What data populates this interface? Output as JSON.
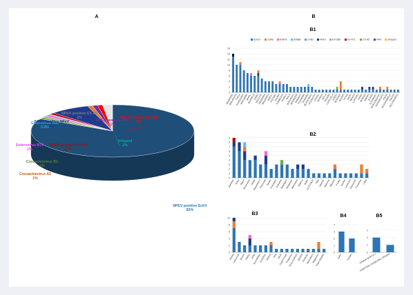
{
  "colors": {
    "background": "#eef0f6",
    "panel": "#ffffff",
    "echovirus": "#2e75b6",
    "cva6": "#ed7d31",
    "ev_d68": "#a5a5a5",
    "ev_a71": "#c00000",
    "cvb2": "#5b9bd5",
    "cva5": "#70ad47",
    "ev_b75": "#ff66cc",
    "ev_b80": "#4fc3f7",
    "hpev": "#1f3b8c",
    "untyped": "#000000"
  },
  "chart_data": [
    {
      "id": "A",
      "type": "pie",
      "panel_label": "A",
      "slices": [
        {
          "name": "NPEV positive EchV",
          "percent": "83%",
          "value": 83,
          "color": "#1f4e79",
          "label_color": "#2e75b6"
        },
        {
          "name": "Coxsackievirus A5",
          "percent": "1%",
          "value": 1,
          "color": "#70ad47",
          "label_color": "#c55a11"
        },
        {
          "name": "Coxsackievirus B2",
          "percent": "1%",
          "value": 1,
          "color": "#a9a9a9",
          "label_color": "#548235"
        },
        {
          "name": "Enterovirus B75",
          "percent": "1%",
          "value": 1,
          "color": "#ff66cc",
          "label_color": "#e040fb"
        },
        {
          "name": "Enterovirus B80",
          "percent": "0.4%",
          "value": 0.4,
          "color": "#4fc3f7",
          "label_color": "#29a9e0"
        },
        {
          "name": "NPEV positive EV-A71",
          "percent": "1%",
          "value": 1,
          "color": "#c00000",
          "label_color": "#c00000"
        },
        {
          "name": "NPEV positive HPeV",
          "percent": "8%",
          "value": 8,
          "color": "#1f3b8c",
          "label_color": "#1f3b8c"
        },
        {
          "name": "NPEV positive CV-A6",
          "percent": "1%",
          "value": 1,
          "color": "#ed7d31",
          "label_color": "#7f7f7f"
        },
        {
          "name": "NPEV positive HRV",
          "percent": "1%",
          "value": 1,
          "color": "#7030a0",
          "label_color": "#7030a0"
        },
        {
          "name": "NPEV positive EV-D68",
          "percent": "1%",
          "value": 1,
          "color": "#ff0000",
          "label_color": "#ff0000"
        },
        {
          "name": "Untyped",
          "percent": "2%",
          "value": 2,
          "color": "#e7e6e6",
          "label_color": "#00b0a0"
        }
      ]
    },
    {
      "id": "B1",
      "type": "bar",
      "stacked": true,
      "panel_label": "B1",
      "ylim": [
        0,
        16
      ],
      "yticks": [
        0,
        2,
        4,
        6,
        8,
        10,
        12,
        14,
        16
      ],
      "legend": [
        "EchoV",
        "CVA6",
        "EVB75",
        "EVB80",
        "CVB2",
        "HPeV",
        "EV-D68",
        "EV-A71",
        "CV-A5",
        "HRV",
        "Untyped"
      ],
      "legend_colors": [
        "#2e75b6",
        "#ed7d31",
        "#ff66cc",
        "#4fc3f7",
        "#5b9bd5",
        "#1f3b8c",
        "#a5a5a5",
        "#c00000",
        "#70ad47",
        "#7030a0",
        "#ffc000"
      ],
      "categories": [
        "MARRERE",
        "BUKAKASA",
        "TUKAI",
        "TOUSSAINT",
        "MAKAMBA",
        "MHALI",
        "BOSSELE",
        "GABU",
        "NGOUTE",
        "ADAMANA",
        "MAGANGA",
        "BIBOLI",
        "KIKOMO",
        "SALWA",
        "KAMBOUA",
        "DOBILA",
        "BULA",
        "BISSANGO",
        "MASWERE",
        "BAMAKO",
        "TOUREMA",
        "DAGAMA",
        "BOSSONGO",
        "KOUAKOU",
        "LONGO",
        "MUNGA",
        "BOLA",
        "NGAMA",
        "LUKOLELA",
        "KINDA",
        "BOSSAR",
        "BOUAR",
        "KOUA",
        "NIOKI",
        "ABAGU",
        "LOKORO",
        "KABO",
        "MONGO",
        "MBAIKI",
        "GOUDI",
        "KOUANGO",
        "NGAOUNDAYE",
        "BATANGAFO",
        "KAGA",
        "BOSSEMBELE",
        "PAOUA",
        "BOCARANGA"
      ],
      "series": [
        {
          "color": "#2e75b6",
          "values": [
            13,
            10,
            10,
            8,
            7,
            6,
            6,
            6,
            5,
            4,
            4,
            4,
            3,
            3,
            3,
            3,
            2,
            2,
            2,
            2,
            2,
            2,
            2,
            1,
            1,
            1,
            1,
            1,
            1,
            1,
            1,
            1,
            1,
            1,
            1,
            1,
            1,
            1,
            1,
            1,
            1,
            1,
            1,
            1,
            1,
            1,
            1
          ]
        },
        {
          "color": "#1f3b8c",
          "values": [
            0,
            0,
            0,
            0,
            0,
            0,
            0,
            1,
            0,
            0,
            0,
            0,
            0,
            0,
            0,
            0,
            0,
            0,
            0,
            0,
            0,
            0,
            0,
            0,
            0,
            0,
            0,
            0,
            0,
            0,
            0,
            0,
            0,
            0,
            0,
            0,
            1,
            0,
            1,
            1,
            0,
            0,
            0,
            0,
            0,
            0,
            0
          ]
        },
        {
          "color": "#ed7d31",
          "values": [
            0,
            0,
            1,
            0,
            0,
            0,
            0,
            1,
            0,
            0,
            0,
            0,
            0,
            1,
            0,
            0,
            0,
            0,
            0,
            0,
            0,
            0,
            0,
            0,
            0,
            0,
            0,
            0,
            0,
            0,
            3,
            0,
            0,
            0,
            0,
            0,
            0,
            0,
            0,
            0,
            0,
            1,
            0,
            1,
            0,
            0,
            0
          ]
        },
        {
          "color": "#000000",
          "values": [
            1,
            0,
            0,
            0,
            0,
            0,
            0,
            0,
            0,
            0,
            0,
            0,
            0,
            0,
            0,
            0,
            0,
            0,
            0,
            0,
            0,
            0,
            0,
            0,
            0,
            0,
            0,
            0,
            0,
            0,
            0,
            0,
            0,
            0,
            0,
            0,
            0,
            0,
            0,
            0,
            0,
            0,
            0,
            0,
            0,
            0,
            0
          ]
        },
        {
          "color": "#ff66cc",
          "values": [
            0,
            0,
            0,
            0,
            0,
            1,
            0,
            0,
            0,
            0,
            0,
            0,
            0,
            0,
            0,
            0,
            0,
            0,
            0,
            0,
            0,
            0,
            0,
            0,
            0,
            0,
            0,
            0,
            0,
            0,
            0,
            0,
            0,
            0,
            0,
            0,
            0,
            0,
            0,
            0,
            0,
            0,
            0,
            0,
            0,
            0,
            0
          ]
        },
        {
          "color": "#4fc3f7",
          "values": [
            0,
            0,
            0,
            0,
            0,
            0,
            0,
            0,
            0,
            0,
            0,
            0,
            0,
            0,
            0,
            0,
            0,
            0,
            0,
            0,
            0,
            1,
            0,
            0,
            0,
            0,
            0,
            0,
            0,
            0,
            0,
            0,
            0,
            0,
            0,
            0,
            0,
            0,
            0,
            0,
            0,
            0,
            0,
            0,
            0,
            0,
            0
          ]
        },
        {
          "color": "#70ad47",
          "values": [
            0,
            0,
            0,
            0,
            0,
            0,
            0,
            0,
            0,
            0,
            0,
            0,
            0,
            0,
            0,
            0,
            0,
            0,
            0,
            0,
            0,
            0,
            0,
            0,
            0,
            0,
            0,
            0,
            0,
            1,
            0,
            0,
            0,
            0,
            0,
            0,
            0,
            0,
            0,
            0,
            0,
            0,
            0,
            0,
            0,
            0,
            0
          ]
        }
      ]
    },
    {
      "id": "B2",
      "type": "bar",
      "stacked": true,
      "panel_label": "B2",
      "ylim": [
        0,
        9
      ],
      "yticks": [
        0,
        1,
        2,
        3,
        4,
        5,
        6,
        7,
        8,
        9
      ],
      "categories": [
        "Bambari",
        "Bobo",
        "Bigori",
        "Bouarassa",
        "Obala",
        "Nanamkoro",
        "Fanourak",
        "Tanam",
        "Kouadara",
        "Dubaska",
        "Batakigue",
        "Gbagayan",
        "Mambana",
        "Mabrou",
        "Bafilo",
        "COTONOU",
        "Toky",
        "Maman",
        "Batsona",
        "Mazuke",
        "Kouba",
        "Kembe",
        "Lamborio",
        "Gasourele",
        "Fuoumba",
        "Lakai"
      ],
      "series": [
        {
          "color": "#2e75b6",
          "values": [
            7,
            6,
            4,
            4,
            4,
            3,
            3,
            2,
            3,
            3,
            3,
            2,
            2,
            2,
            2,
            1,
            1,
            1,
            1,
            2,
            1,
            1,
            1,
            1,
            1,
            1
          ]
        },
        {
          "color": "#1f3b8c",
          "values": [
            1,
            2,
            2,
            0,
            1,
            0,
            2,
            0,
            0,
            0,
            0,
            0,
            1,
            1,
            0,
            0,
            0,
            0,
            0,
            0,
            0,
            0,
            0,
            0,
            0,
            0
          ]
        },
        {
          "color": "#ed7d31",
          "values": [
            0,
            0,
            1,
            0,
            0,
            0,
            0,
            0,
            0,
            0,
            0,
            0,
            0,
            0,
            0,
            0,
            0,
            0,
            0,
            1,
            0,
            0,
            0,
            0,
            2,
            1
          ]
        },
        {
          "color": "#4fc3f7",
          "values": [
            0,
            0,
            1,
            0,
            0,
            0,
            0,
            0,
            0,
            0,
            0,
            0,
            0,
            0,
            0,
            0,
            0,
            0,
            0,
            0,
            0,
            0,
            0,
            0,
            0,
            0
          ]
        },
        {
          "color": "#c00000",
          "values": [
            1,
            0,
            0,
            0,
            0,
            0,
            0,
            0,
            0,
            0,
            0,
            0,
            0,
            0,
            0,
            0,
            0,
            0,
            0,
            0,
            0,
            0,
            0,
            0,
            0,
            0
          ]
        },
        {
          "color": "#ff66cc",
          "values": [
            0,
            0,
            0,
            0,
            0,
            0,
            1,
            0,
            0,
            0,
            0,
            0,
            0,
            0,
            0,
            0,
            0,
            0,
            0,
            0,
            0,
            0,
            0,
            0,
            0,
            0
          ]
        },
        {
          "color": "#70ad47",
          "values": [
            0,
            0,
            0,
            0,
            0,
            0,
            0,
            0,
            0,
            1,
            0,
            0,
            0,
            0,
            0,
            0,
            0,
            0,
            0,
            0,
            0,
            0,
            0,
            0,
            0,
            0
          ]
        }
      ]
    },
    {
      "id": "B3",
      "type": "bar",
      "stacked": true,
      "panel_label": "B3",
      "ylim": [
        0,
        10
      ],
      "yticks": [
        0,
        2,
        4,
        6,
        8,
        10
      ],
      "categories": [
        "N'kola",
        "Lamoreuk",
        "Bonne",
        "Sabbo",
        "Arlas",
        "Noordifalas",
        "Di-Boboc",
        "M'Boul",
        "Aog",
        "Abuti",
        "Ouali Froujo",
        "Toyguissa",
        "TOULOUROS",
        "SEKRA",
        "Gniubolo",
        "Banzakaro",
        "Magbuluo",
        "Kaan Madala"
      ],
      "series": [
        {
          "color": "#2e75b6",
          "values": [
            7,
            3,
            2,
            2,
            2,
            2,
            2,
            2,
            1,
            1,
            1,
            1,
            1,
            1,
            1,
            1,
            1,
            1
          ]
        },
        {
          "color": "#ed7d31",
          "values": [
            2,
            0,
            0,
            0,
            0,
            0,
            0,
            1,
            0,
            0,
            0,
            0,
            0,
            0,
            0,
            0,
            2,
            0
          ]
        },
        {
          "color": "#1f3b8c",
          "values": [
            1,
            0,
            0,
            2,
            0,
            0,
            0,
            0,
            0,
            0,
            0,
            0,
            0,
            0,
            0,
            0,
            0,
            0
          ]
        },
        {
          "color": "#ff66cc",
          "values": [
            0,
            0,
            0,
            1,
            0,
            0,
            0,
            0,
            0,
            0,
            0,
            0,
            0,
            0,
            0,
            0,
            0,
            0
          ]
        }
      ]
    },
    {
      "id": "B4",
      "type": "bar",
      "panel_label": "B4",
      "ylim": [
        0,
        4
      ],
      "yticks": [
        0,
        1,
        2,
        3,
        4
      ],
      "categories": [
        "Gabo",
        "Hehike"
      ],
      "series": [
        {
          "color": "#2e75b6",
          "values": [
            3,
            2
          ]
        }
      ]
    },
    {
      "id": "B5",
      "type": "bar",
      "panel_label": "B5",
      "ylim": [
        0,
        3
      ],
      "yticks": [
        0,
        1,
        2,
        3
      ],
      "categories": [
        "KINANI NORTH 1",
        "KANSTING MUNICIPAL DRAINS"
      ],
      "series": [
        {
          "color": "#2e75b6",
          "values": [
            2,
            1
          ]
        }
      ]
    }
  ],
  "section_labels": {
    "a": "A",
    "b": "B"
  }
}
